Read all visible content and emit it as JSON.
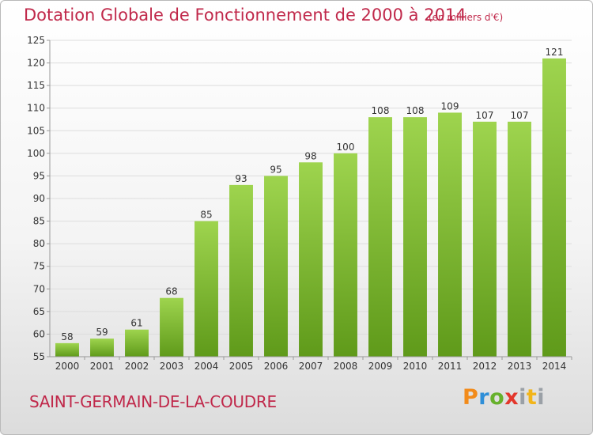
{
  "header": {
    "title": "Dotation Globale de Fonctionnement de 2000 à 2014",
    "unit": "(en milliers d'€)"
  },
  "footer": {
    "commune": "SAINT-GERMAIN-DE-LA-COUDRE",
    "logo_letters": [
      "P",
      "r",
      "o",
      "x",
      "i",
      "t",
      "i"
    ]
  },
  "colors": {
    "accent": "#c0284a",
    "bar_top": "#9ed44e",
    "bar_bottom": "#5f9a1a",
    "grid": "#dddddd",
    "axis": "#999999"
  },
  "chart_data": {
    "type": "bar",
    "title": "Dotation Globale de Fonctionnement de 2000 à 2014",
    "subtitle": "(en milliers d'€)",
    "xlabel": "",
    "ylabel": "",
    "categories": [
      "2000",
      "2001",
      "2002",
      "2003",
      "2004",
      "2005",
      "2006",
      "2007",
      "2008",
      "2009",
      "2010",
      "2011",
      "2012",
      "2013",
      "2014"
    ],
    "values": [
      58,
      59,
      61,
      68,
      85,
      93,
      95,
      98,
      100,
      108,
      108,
      109,
      107,
      107,
      121
    ],
    "ylim": [
      55,
      125
    ],
    "yticks": [
      55,
      60,
      65,
      70,
      75,
      80,
      85,
      90,
      95,
      100,
      105,
      110,
      115,
      120,
      125
    ],
    "grid": true,
    "legend": "none"
  }
}
